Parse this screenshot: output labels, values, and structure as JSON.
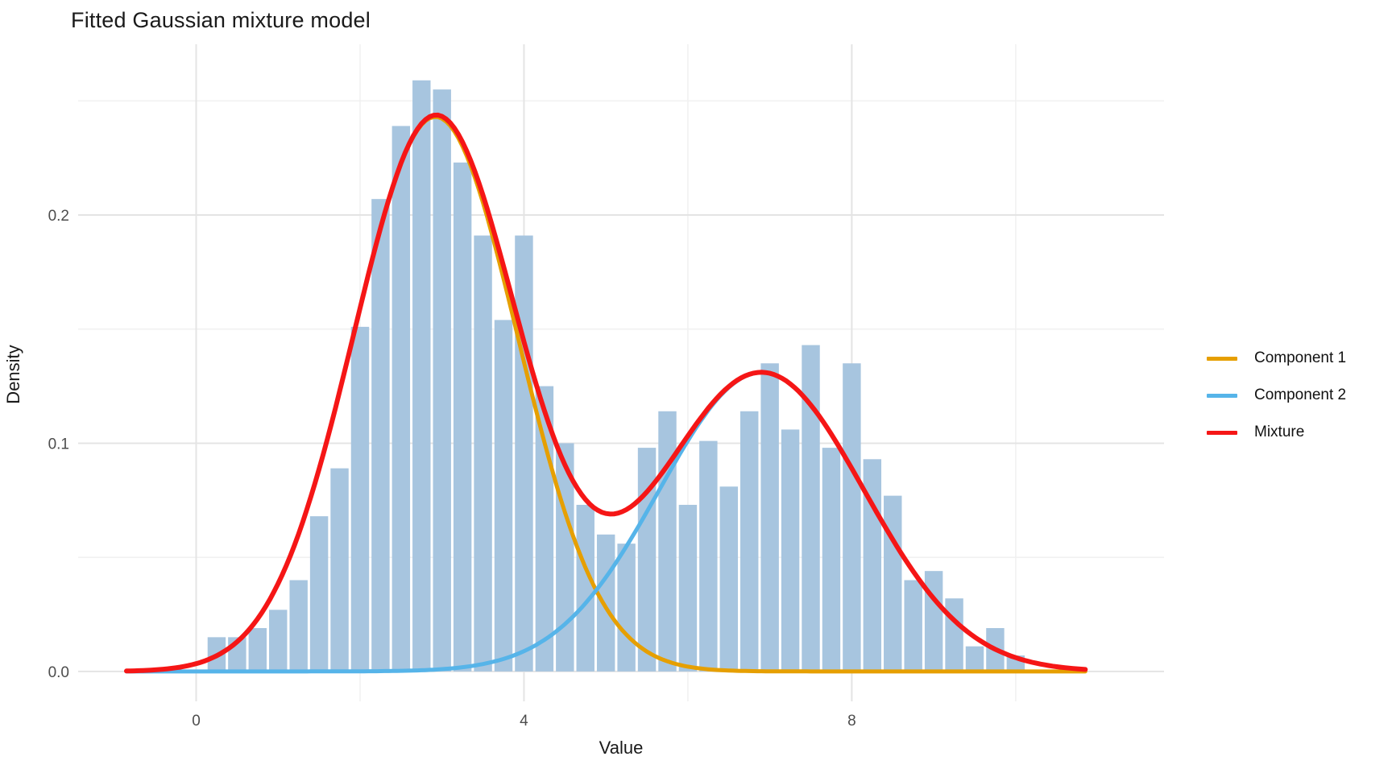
{
  "chart_data": {
    "type": "bar",
    "subtype": "histogram-with-density-curves",
    "title": "Fitted Gaussian mixture model",
    "xlabel": "Value",
    "ylabel": "Density",
    "xlim": [
      -1.44,
      11.81
    ],
    "ylim": [
      -0.0131,
      0.2748
    ],
    "grid": "on",
    "legend_position": "right",
    "x_ticks": {
      "values": [
        0,
        4,
        8
      ],
      "labels": [
        "0",
        "4",
        "8"
      ],
      "minor": [
        2,
        6,
        10
      ]
    },
    "y_ticks": {
      "values": [
        0,
        0.1,
        0.2
      ],
      "labels": [
        "0.0",
        "0.1",
        "0.2"
      ],
      "minor": [
        0.05,
        0.15,
        0.25
      ]
    },
    "histogram": {
      "bin_width": 0.25,
      "fill_color": "#A7C5DF",
      "centers": [
        0.25,
        0.5,
        0.75,
        1.0,
        1.25,
        1.5,
        1.75,
        2.0,
        2.25,
        2.5,
        2.75,
        3.0,
        3.25,
        3.5,
        3.75,
        4.0,
        4.25,
        4.5,
        4.75,
        5.0,
        5.25,
        5.5,
        5.75,
        6.0,
        6.25,
        6.5,
        6.75,
        7.0,
        7.25,
        7.5,
        7.75,
        8.0,
        8.25,
        8.5,
        8.75,
        9.0,
        9.25,
        9.5,
        9.75,
        10.0
      ],
      "densities": [
        0.015,
        0.015,
        0.019,
        0.027,
        0.04,
        0.068,
        0.089,
        0.151,
        0.207,
        0.239,
        0.259,
        0.255,
        0.223,
        0.191,
        0.154,
        0.191,
        0.125,
        0.1,
        0.073,
        0.06,
        0.056,
        0.098,
        0.114,
        0.073,
        0.101,
        0.081,
        0.114,
        0.135,
        0.106,
        0.143,
        0.098,
        0.135,
        0.093,
        0.077,
        0.04,
        0.044,
        0.032,
        0.011,
        0.019,
        0.007
      ]
    },
    "curve_range": [
      -0.85,
      10.85
    ],
    "series": [
      {
        "name": "Component 1",
        "color": "#E69F00",
        "kind": "gaussian",
        "mean": 2.92,
        "sd": 1.0,
        "peak_density": 0.243
      },
      {
        "name": "Component 2",
        "color": "#56B4E9",
        "kind": "gaussian",
        "mean": 6.9,
        "sd": 1.25,
        "peak_density": 0.131
      },
      {
        "name": "Mixture",
        "color": "#F51616",
        "kind": "sum",
        "peak_left": 0.245,
        "peak_right": 0.131,
        "valley": 0.069
      }
    ],
    "colors": {
      "grid_major": "#E4E4E4",
      "grid_minor": "#F1F1F1",
      "tick_label": "#4D4D4D",
      "background": "#FFFFFF"
    }
  }
}
